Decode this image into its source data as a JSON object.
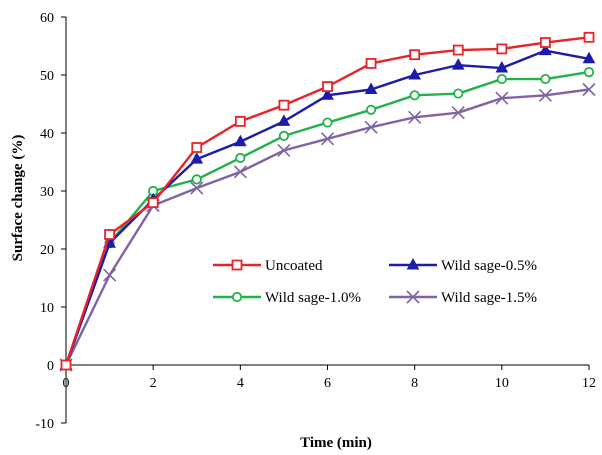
{
  "chart_data": {
    "type": "line",
    "title": "",
    "xlabel": "Time (min)",
    "ylabel": "Surface change (%)",
    "xlim": [
      0,
      12
    ],
    "ylim": [
      -10,
      60
    ],
    "xticks": [
      0,
      2,
      4,
      6,
      8,
      10,
      12
    ],
    "yticks": [
      -10,
      0,
      10,
      20,
      30,
      40,
      50,
      60
    ],
    "grid": false,
    "legend_position": "center",
    "x": [
      0,
      1,
      2,
      3,
      4,
      5,
      6,
      7,
      8,
      9,
      10,
      11,
      12
    ],
    "series": [
      {
        "name": "Uncoated",
        "color": "#e8232a",
        "marker": "square-open",
        "values": [
          0,
          22.5,
          28,
          37.5,
          42,
          44.8,
          48,
          52,
          53.5,
          54.3,
          54.5,
          55.6,
          56.5
        ]
      },
      {
        "name": "Wild sage-0.5%",
        "color": "#1c1ca8",
        "marker": "triangle-filled",
        "values": [
          0,
          21,
          28.5,
          35.5,
          38.5,
          42,
          46.5,
          47.5,
          50,
          51.7,
          51.2,
          54.2,
          52.8
        ]
      },
      {
        "name": "Wild sage-1.0%",
        "color": "#22b24c",
        "marker": "circle-open",
        "values": [
          0,
          21,
          30,
          32,
          35.7,
          39.5,
          41.8,
          44,
          46.5,
          46.8,
          49.3,
          49.3,
          50.5
        ]
      },
      {
        "name": "Wild sage-1.5%",
        "color": "#8064a2",
        "marker": "x",
        "values": [
          0,
          15.5,
          27.5,
          30.5,
          33.3,
          37,
          39,
          41,
          42.7,
          43.5,
          46,
          46.5,
          47.5
        ]
      }
    ]
  }
}
